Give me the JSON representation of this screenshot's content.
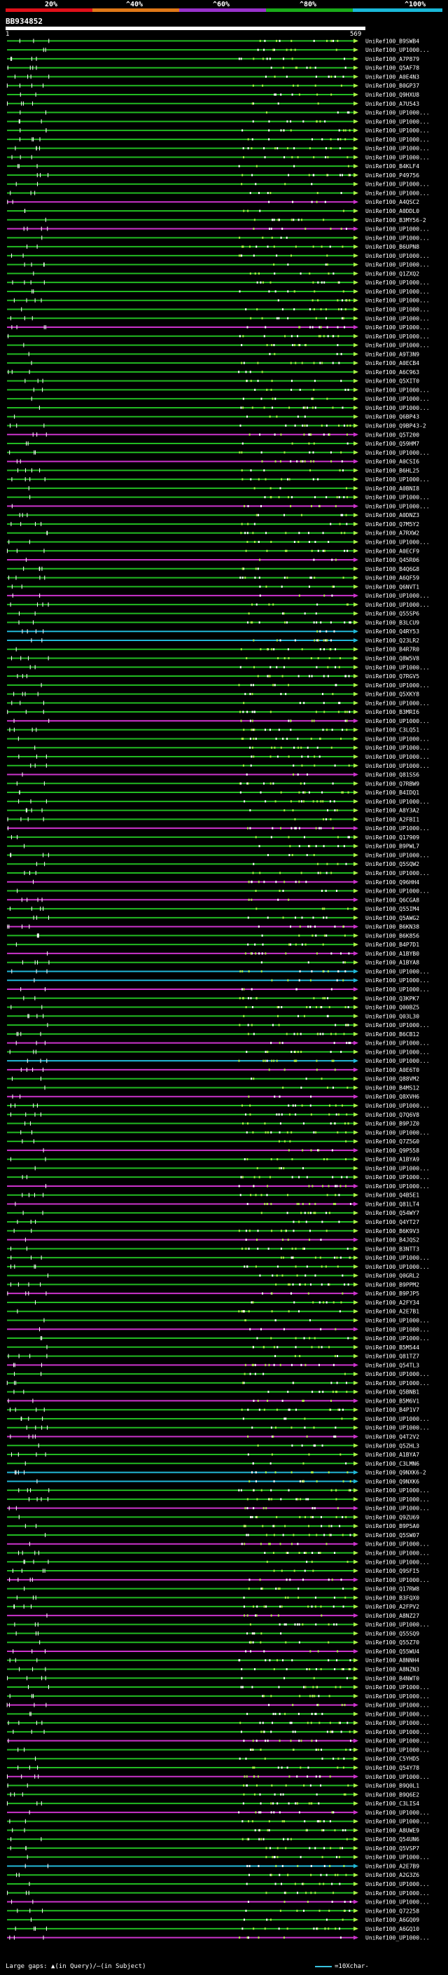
{
  "scale": {
    "ticks": [
      "20%",
      "^40%",
      "^60%",
      "^80%",
      "^100%"
    ],
    "colors": [
      "#e0101a",
      "#e07818",
      "#9932cc",
      "#1aaa1a",
      "#1ab8d8"
    ]
  },
  "query": {
    "id": "BB934852",
    "start": "1",
    "end": "569"
  },
  "hit_ids": [
    "UniRef100_B9SWB4",
    "UniRef100_UP1000...",
    "UniRef100_A7P879",
    "UniRef100_Q5AF78",
    "UniRef100_A0E4N3",
    "UniRef100_B0GP37",
    "UniRef100_Q9HXU8",
    "UniRef100_A7U543",
    "UniRef100_UP1000...",
    "UniRef100_UP1000...",
    "UniRef100_UP1000...",
    "UniRef100_UP1000...",
    "UniRef100_UP1000...",
    "UniRef100_UP1000...",
    "UniRef100_B4KLF4",
    "UniRef100_P49756",
    "UniRef100_UP1000...",
    "UniRef100_UP1000...",
    "UniRef100_A4QSC2",
    "UniRef100_A0DDL0",
    "UniRef100_B3MY56-2",
    "UniRef100_UP1000...",
    "UniRef100_UP1000...",
    "UniRef100_B6UPN8",
    "UniRef100_UP1000...",
    "UniRef100_UP1000...",
    "UniRef100_Q1ZXQ2",
    "UniRef100_UP1000...",
    "UniRef100_UP1000...",
    "UniRef100_UP1000...",
    "UniRef100_UP1000...",
    "UniRef100_UP1000...",
    "UniRef100_UP1000...",
    "UniRef100_UP1000...",
    "UniRef100_UP1000...",
    "UniRef100_A9T3N9",
    "UniRef100_A0ECB4",
    "UniRef100_A6C963",
    "UniRef100_Q5XIT0",
    "UniRef100_UP1000...",
    "UniRef100_UP1000...",
    "UniRef100_UP1000...",
    "UniRef100_Q6BP43",
    "UniRef100_Q9BP43-2",
    "UniRef100_Q5T200",
    "UniRef100_Q59HM7",
    "UniRef100_UP1000...",
    "UniRef100_A0CSI6",
    "UniRef100_B6HL25",
    "UniRef100_UP1000...",
    "UniRef100_A0BNI8",
    "UniRef100_UP1000...",
    "UniRef100_UP1000...",
    "UniRef100_A0DNZ3",
    "UniRef100_Q7M5Y2",
    "UniRef100_A7RXW2",
    "UniRef100_UP1000...",
    "UniRef100_A0ECF9",
    "UniRef100_Q45R06",
    "UniRef100_B4Q6G8",
    "UniRef100_A6QF59",
    "UniRef100_Q6NVT1",
    "UniRef100_UP1000...",
    "UniRef100_UP1000...",
    "UniRef100_Q55SP6",
    "UniRef100_B3LCU9",
    "UniRef100_Q4RY53",
    "UniRef100_Q23LR2",
    "UniRef100_B4R7R0",
    "UniRef100_Q8W5V8",
    "UniRef100_UP1000...",
    "UniRef100_Q7RGV5",
    "UniRef100_UP1000...",
    "UniRef100_Q5XKY8",
    "UniRef100_UP1000...",
    "UniRef100_B3MRI6",
    "UniRef100_UP1000...",
    "UniRef100_C3LQ51",
    "UniRef100_UP1000...",
    "UniRef100_UP1000...",
    "UniRef100_UP1000...",
    "UniRef100_UP1000...",
    "UniRef100_Q81SS6",
    "UniRef100_Q7RBW9",
    "UniRef100_B4IDQ1",
    "UniRef100_UP1000...",
    "UniRef100_A8Y3A2",
    "UniRef100_A2FBI1",
    "UniRef100_UP1000...",
    "UniRef100_Q17909",
    "UniRef100_B9PWL7",
    "UniRef100_UP1000...",
    "UniRef100_Q5SQW2",
    "UniRef100_UP1000...",
    "UniRef100_Q96HH4",
    "UniRef100_UP1000...",
    "UniRef100_Q6CGA8",
    "UniRef100_Q55IM4",
    "UniRef100_Q5AWG2",
    "UniRef100_B6KN38",
    "UniRef100_B6K856",
    "UniRef100_B4P7D1",
    "UniRef100_A1BYB0",
    "UniRef100_A1BYA8",
    "UniRef100_UP1000...",
    "UniRef100_UP1000...",
    "UniRef100_UP1000...",
    "UniRef100_Q3KPK7",
    "UniRef100_Q00BZ5",
    "UniRef100_Q03L30",
    "UniRef100_UP1000...",
    "UniRef100_B6CB12",
    "UniRef100_UP1000...",
    "UniRef100_UP1000...",
    "UniRef100_UP1000...",
    "UniRef100_A0E6T0",
    "UniRef100_Q88VM2",
    "UniRef100_B4MS12",
    "UniRef100_Q8XVH6",
    "UniRef100_UP1000...",
    "UniRef100_Q7Q6V8",
    "UniRef100_B9PJZ0",
    "UniRef100_UP1000...",
    "UniRef100_Q7Z5G0",
    "UniRef100_Q9P558",
    "UniRef100_A1BYA9",
    "UniRef100_UP1000...",
    "UniRef100_UP1000...",
    "UniRef100_UP1000...",
    "UniRef100_Q4B5E1",
    "UniRef100_Q81LT4",
    "UniRef100_Q54WY7",
    "UniRef100_Q4YT27",
    "UniRef100_B6K9V3",
    "UniRef100_B4JQS2",
    "UniRef100_B3NTT3",
    "UniRef100_UP1000...",
    "UniRef100_UP1000...",
    "UniRef100_Q0GRL2",
    "UniRef100_B9PPM2",
    "UniRef100_B9PJP5",
    "UniRef100_A2FY34",
    "UniRef100_A2E7B1",
    "UniRef100_UP1000...",
    "UniRef100_UP1000...",
    "UniRef100_UP1000...",
    "UniRef100_B5M544",
    "UniRef100_Q81TZ7",
    "UniRef100_Q54TL3",
    "UniRef100_UP1000...",
    "UniRef100_UP1000...",
    "UniRef100_Q5BNB1",
    "UniRef100_B5M6V1",
    "UniRef100_B4P1V7",
    "UniRef100_UP1000...",
    "UniRef100_UP1000...",
    "UniRef100_Q4T2V2",
    "UniRef100_Q5ZHL3",
    "UniRef100_A1BYA7",
    "UniRef100_C3LMN6",
    "UniRef100_Q9NXK6-2",
    "UniRef100_Q9NXK6",
    "UniRef100_UP1000...",
    "UniRef100_UP1000...",
    "UniRef100_UP1000...",
    "UniRef100_Q9ZU69",
    "UniRef100_B9P5A0",
    "UniRef100_Q5SW07",
    "UniRef100_UP1000...",
    "UniRef100_UP1000...",
    "UniRef100_UP1000...",
    "UniRef100_Q9SFI5",
    "UniRef100_UP1000...",
    "UniRef100_Q17RW8",
    "UniRef100_B3FQX0",
    "UniRef100_A2FPV2",
    "UniRef100_A8NZ27",
    "UniRef100_UP1000...",
    "UniRef100_Q55SQ9",
    "UniRef100_Q55Z70",
    "UniRef100_Q55WU4",
    "UniRef100_A8NNH4",
    "UniRef100_A8NZN3",
    "UniRef100_B4NWT0",
    "UniRef100_UP1000...",
    "UniRef100_UP1000...",
    "UniRef100_UP1000...",
    "UniRef100_UP1000...",
    "UniRef100_UP1000...",
    "UniRef100_UP1000...",
    "UniRef100_UP1000...",
    "UniRef100_UP1000...",
    "UniRef100_C5YHD5",
    "UniRef100_Q54Y78",
    "UniRef100_UP1000...",
    "UniRef100_B9Q0L1",
    "UniRef100_B9Q6E2",
    "UniRef100_C3LIS4",
    "UniRef100_UP1000...",
    "UniRef100_UP1000...",
    "UniRef100_A8UWE9",
    "UniRef100_Q54UN6",
    "UniRef100_Q5VSP7",
    "UniRef100_UP1000...",
    "UniRef100_A2E7B9",
    "UniRef100_A2G3Z6",
    "UniRef100_UP1000...",
    "UniRef100_UP1000...",
    "UniRef100_UP1000...",
    "UniRef100_Q72258",
    "UniRef100_A6GQ09",
    "UniRef100_A6GQ10",
    "UniRef100_UP1000..."
  ],
  "footer": {
    "left": "Large gaps: ▲(in Query)/—(in Subject)",
    "right": "=10Xchar-"
  }
}
